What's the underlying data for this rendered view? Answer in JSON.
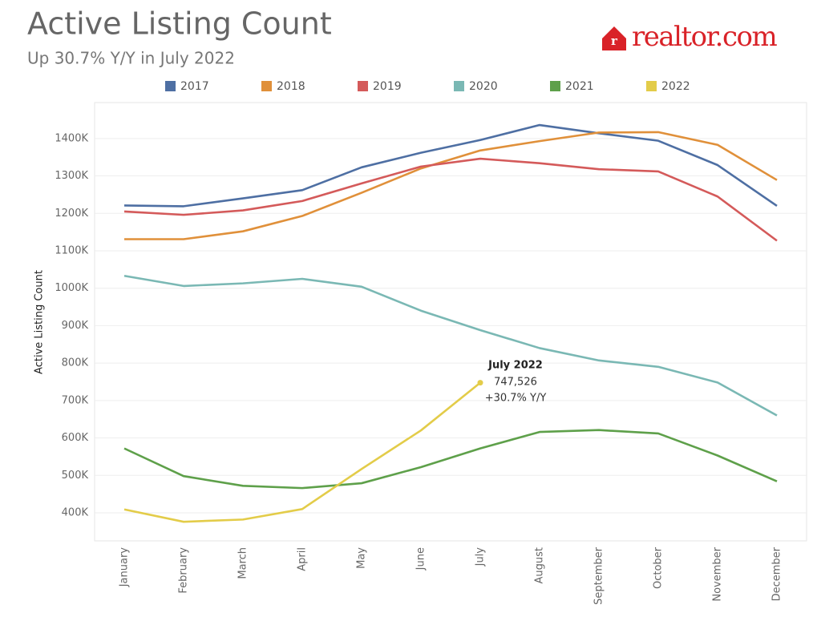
{
  "chart_data": {
    "type": "line",
    "title": "Active Listing Count",
    "subtitle": "Up 30.7% Y/Y in July 2022",
    "logo": "realtor.com",
    "y_label": "Active Listing Count",
    "categories": [
      "January",
      "February",
      "March",
      "April",
      "May",
      "June",
      "July",
      "August",
      "September",
      "October",
      "November",
      "December"
    ],
    "series": [
      {
        "name": "2017",
        "color": "#4e6fa3",
        "values": [
          1221000,
          1219000,
          1240000,
          1262000,
          1323000,
          1362000,
          1396000,
          1436000,
          1414000,
          1394000,
          1329000,
          1220000
        ]
      },
      {
        "name": "2018",
        "color": "#e0903a",
        "values": [
          1131000,
          1131000,
          1152000,
          1193000,
          1255000,
          1320000,
          1368000,
          1393000,
          1416000,
          1417000,
          1383000,
          1289000
        ]
      },
      {
        "name": "2019",
        "color": "#d45a5a",
        "values": [
          1205000,
          1196000,
          1208000,
          1233000,
          1280000,
          1325000,
          1346000,
          1334000,
          1318000,
          1312000,
          1245000,
          1127000
        ]
      },
      {
        "name": "2020",
        "color": "#7ab8b4",
        "values": [
          1033000,
          1006000,
          1013000,
          1025000,
          1004000,
          940000,
          888000,
          840000,
          807000,
          790000,
          748000,
          660000
        ]
      },
      {
        "name": "2021",
        "color": "#5ea04a",
        "values": [
          572000,
          498000,
          472000,
          466000,
          479000,
          522000,
          572000,
          616000,
          621000,
          612000,
          553000,
          484000
        ]
      },
      {
        "name": "2022",
        "color": "#e3cc49",
        "values": [
          409000,
          376000,
          382000,
          410000,
          517000,
          620000,
          747526,
          null,
          null,
          null,
          null,
          null
        ],
        "value_labels": [
          null,
          null,
          null,
          null,
          null,
          null,
          "747,526",
          null,
          null,
          null,
          null,
          null
        ]
      }
    ],
    "annotation": {
      "title": "July 2022",
      "text": "+30.7% Y/Y",
      "series": 5,
      "index": 6
    },
    "ylim": [
      325000,
      1496000
    ],
    "yticks": [
      {
        "value": 400000,
        "label": "400K"
      },
      {
        "value": 500000,
        "label": "500K"
      },
      {
        "value": 600000,
        "label": "600K"
      },
      {
        "value": 700000,
        "label": "700K"
      },
      {
        "value": 800000,
        "label": "800K"
      },
      {
        "value": 900000,
        "label": "900K"
      },
      {
        "value": 1000000,
        "label": "1000K"
      },
      {
        "value": 1100000,
        "label": "1100K"
      },
      {
        "value": 1200000,
        "label": "1200K"
      },
      {
        "value": 1300000,
        "label": "1300K"
      },
      {
        "value": 1400000,
        "label": "1400K"
      }
    ],
    "grid": true
  }
}
